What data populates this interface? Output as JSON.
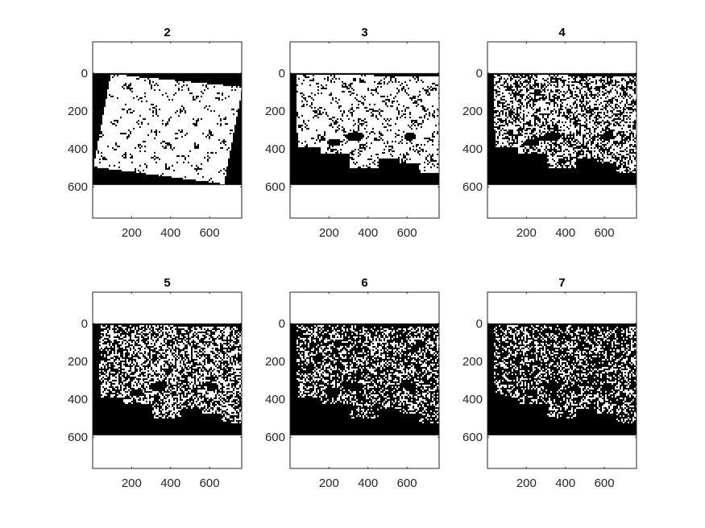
{
  "chart_data": {
    "type": "heatmap",
    "colormap": [
      "#000000",
      "#ffffff"
    ],
    "xlim": [
      0,
      765
    ],
    "ylim": [
      765,
      -165
    ],
    "xticks": [
      200,
      400,
      600
    ],
    "xtick_labels": [
      "200",
      "400",
      "600"
    ],
    "yticks": [
      0,
      200,
      400,
      600
    ],
    "ytick_labels": [
      "0",
      "200",
      "400",
      "600"
    ],
    "image_extent": {
      "x": [
        0,
        765
      ],
      "y": [
        0,
        590
      ]
    },
    "panels": [
      {
        "title": "2",
        "scene": "rotated",
        "white_density": 0.95
      },
      {
        "title": "3",
        "scene": "coastal",
        "white_density": 0.85
      },
      {
        "title": "4",
        "scene": "coastal",
        "white_density": 0.58
      },
      {
        "title": "5",
        "scene": "coastal",
        "white_density": 0.5
      },
      {
        "title": "6",
        "scene": "coastal",
        "white_density": 0.36
      },
      {
        "title": "7",
        "scene": "coastal",
        "white_density": 0.34
      }
    ]
  }
}
